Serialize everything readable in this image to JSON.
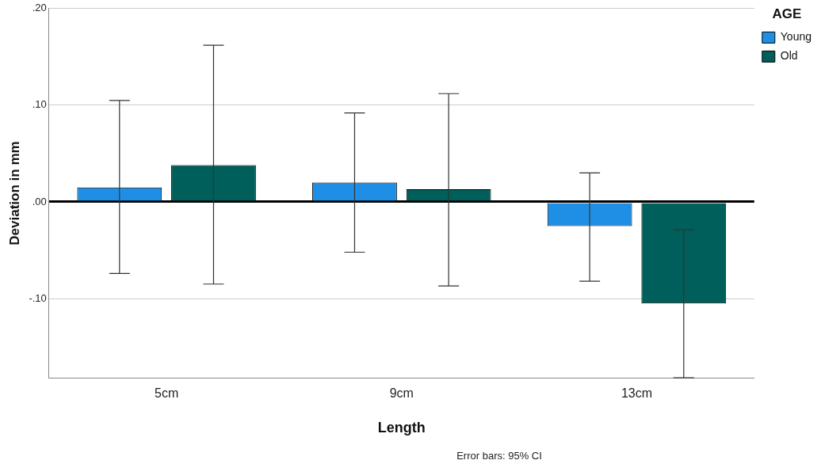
{
  "chart_data": {
    "type": "bar",
    "xlabel": "Length",
    "ylabel": "Deviation in mm",
    "legend_title": "AGE",
    "categories": [
      "5cm",
      "9cm",
      "13cm"
    ],
    "series": [
      {
        "name": "Young",
        "color": "#1f8fe6",
        "values": [
          0.015,
          0.02,
          -0.025
        ],
        "errors": [
          [
            -0.074,
            0.105
          ],
          [
            -0.052,
            0.092
          ],
          [
            -0.082,
            0.03
          ]
        ]
      },
      {
        "name": "Old",
        "color": "#005f5a",
        "values": [
          0.038,
          0.013,
          -0.105
        ],
        "errors": [
          [
            -0.085,
            0.162
          ],
          [
            -0.087,
            0.112
          ],
          [
            -0.182,
            -0.029
          ]
        ]
      }
    ],
    "ylim": [
      -0.182,
      0.2
    ],
    "yticks": [
      {
        "value": -0.1,
        "label": "-.10"
      },
      {
        "value": 0,
        "label": ".00"
      },
      {
        "value": 0.1,
        "label": ".10"
      },
      {
        "value": 0.2,
        "label": ".20"
      }
    ],
    "grid": "y",
    "legend": "top right",
    "annotations": [
      "Error bars: 95% CI"
    ]
  }
}
